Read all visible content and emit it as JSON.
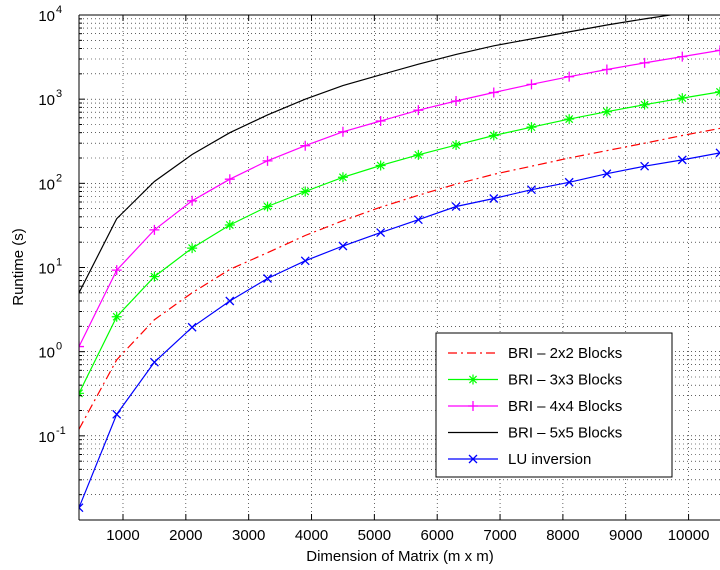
{
  "chart_data": {
    "type": "line",
    "xlabel": "Dimension of Matrix (m x m)",
    "ylabel": "Runtime (s)",
    "x_scale": "linear",
    "y_scale": "log",
    "xlim": [
      300,
      10500
    ],
    "ylim": [
      0.01,
      10000
    ],
    "grid": "major and minor (dotted)",
    "legend_position": "lower-right",
    "x_ticks": [
      1000,
      2000,
      3000,
      4000,
      5000,
      6000,
      7000,
      8000,
      9000,
      10000
    ],
    "x_tick_labels": [
      "1000",
      "2000",
      "3000",
      "4000",
      "5000",
      "6000",
      "7000",
      "8000",
      "9000",
      "10000"
    ],
    "y_ticks": [
      {
        "value": 0.1,
        "base": "10",
        "exp": "-1"
      },
      {
        "value": 1,
        "base": "10",
        "exp": "0"
      },
      {
        "value": 10,
        "base": "10",
        "exp": "1"
      },
      {
        "value": 100,
        "base": "10",
        "exp": "2"
      },
      {
        "value": 1000,
        "base": "10",
        "exp": "3"
      },
      {
        "value": 10000,
        "base": "10",
        "exp": "4"
      }
    ],
    "x": [
      300,
      900,
      1500,
      2100,
      2700,
      3300,
      3900,
      4500,
      5100,
      5700,
      6300,
      6900,
      7500,
      8100,
      8700,
      9300,
      9900,
      10500
    ],
    "series": [
      {
        "name": "BRI – 2x2 Blocks",
        "color": "#ff0000",
        "dash": "dash-dot",
        "marker": "none",
        "values": [
          0.12,
          0.8,
          2.4,
          5,
          9.5,
          15,
          24,
          36,
          52,
          72,
          98,
          128,
          160,
          200,
          245,
          300,
          370,
          450
        ]
      },
      {
        "name": "BRI – 3x3 Blocks",
        "color": "#00ff00",
        "dash": "solid",
        "marker": "asterisk",
        "values": [
          0.32,
          2.6,
          7.8,
          17,
          32,
          53,
          80,
          118,
          163,
          218,
          285,
          370,
          465,
          580,
          710,
          860,
          1030,
          1220
        ]
      },
      {
        "name": "BRI – 4x4 Blocks",
        "color": "#ff00ff",
        "dash": "solid",
        "marker": "plus",
        "values": [
          1.15,
          9.3,
          28,
          62,
          112,
          185,
          280,
          410,
          550,
          740,
          950,
          1200,
          1500,
          1850,
          2250,
          2700,
          3200,
          3800
        ]
      },
      {
        "name": "BRI – 5x5 Blocks",
        "color": "#000000",
        "dash": "solid",
        "marker": "none",
        "values": [
          5,
          38,
          105,
          220,
          400,
          650,
          1000,
          1450,
          1950,
          2600,
          3400,
          4300,
          5200,
          6300,
          7600,
          9000,
          10500,
          12500
        ]
      },
      {
        "name": "LU inversion",
        "color": "#0000ff",
        "dash": "solid",
        "marker": "x",
        "values": [
          0.014,
          0.18,
          0.75,
          1.95,
          4,
          7.4,
          12,
          18,
          26,
          37,
          53,
          66,
          84,
          103,
          130,
          160,
          190,
          230
        ]
      }
    ]
  }
}
